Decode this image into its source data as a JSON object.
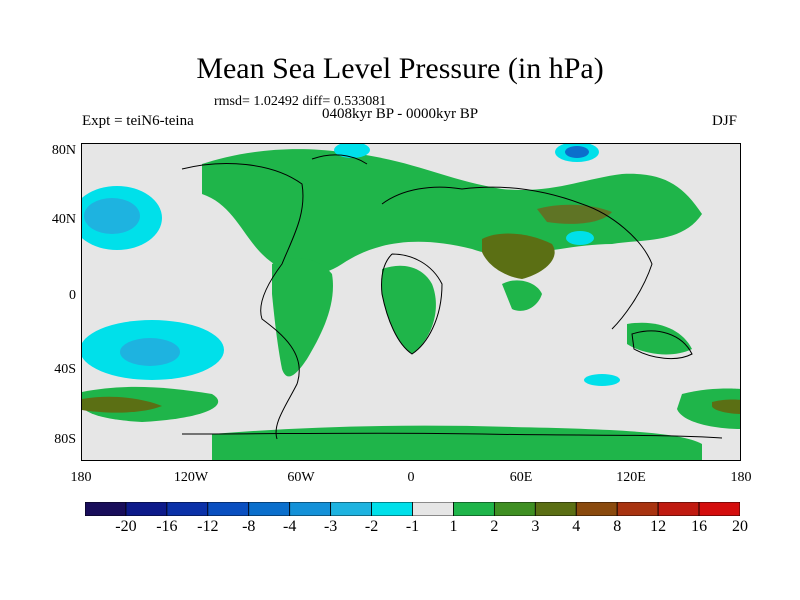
{
  "title": "Mean Sea Level Pressure (in hPa)",
  "stats": "rmsd= 1.02492  diff= 0.533081",
  "period": "0408kyr BP - 0000kyr BP",
  "experiment": "Expt = teiN6-teina",
  "season": "DJF",
  "y_axis_labels": [
    "80N",
    "40N",
    "0",
    "40S",
    "80S"
  ],
  "x_axis_labels": [
    "180",
    "120W",
    "60W",
    "0",
    "60E",
    "120E",
    "180"
  ],
  "colorbar": {
    "labels": [
      "-20",
      "-16",
      "-12",
      "-8",
      "-4",
      "-3",
      "-2",
      "-1",
      "1",
      "2",
      "3",
      "4",
      "8",
      "12",
      "16",
      "20"
    ],
    "colors": [
      "#180d5a",
      "#0d1a8a",
      "#0b31a8",
      "#0a4fc0",
      "#0b6fcc",
      "#1491d8",
      "#1eb3e0",
      "#00e0ea",
      "#e6e6e6",
      "#1fb54a",
      "#3f8f23",
      "#5b6f14",
      "#8a4a0e",
      "#a83310",
      "#c01a10",
      "#d40d0d"
    ]
  },
  "colors": {
    "ocean_background": "#e6e6e6",
    "positive_weak": "#1fb54a",
    "positive_mid": "#5b6f14",
    "positive_strong": "#8a4a0e",
    "negative_weak": "#00e0ea",
    "negative_mid": "#1eb3e0",
    "negative_strong": "#0b6fcc"
  }
}
